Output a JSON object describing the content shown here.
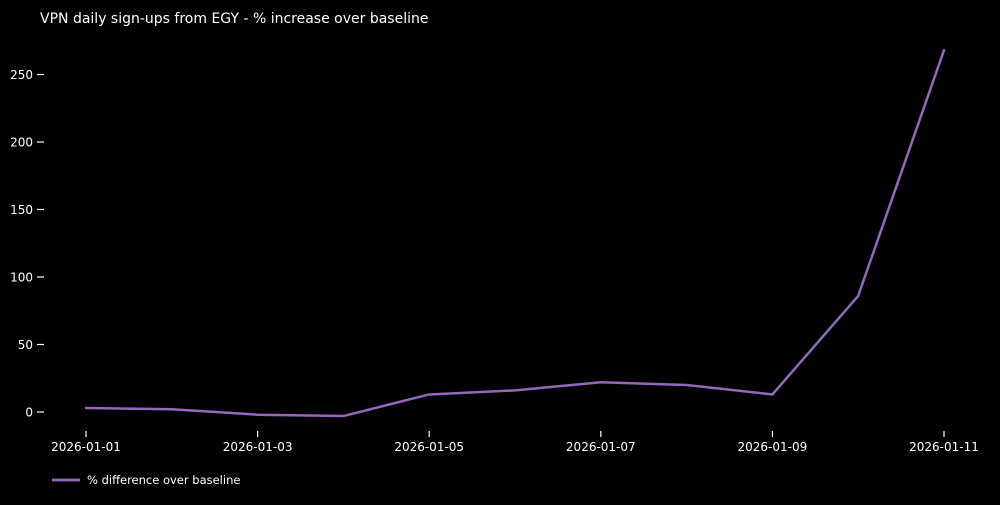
{
  "colors": {
    "background": "#000000",
    "text": "#ffffff",
    "line": "#9467bd"
  },
  "legend": {
    "label": "% difference over baseline"
  },
  "chart_data": {
    "type": "line",
    "title": "VPN daily sign-ups from EGY - % increase over baseline",
    "x": [
      "2026-01-01",
      "2026-01-02",
      "2026-01-03",
      "2026-01-04",
      "2026-01-05",
      "2026-01-06",
      "2026-01-07",
      "2026-01-08",
      "2026-01-09",
      "2026-01-10",
      "2026-01-11"
    ],
    "series": [
      {
        "name": "% difference over baseline",
        "values": [
          3,
          2,
          -2,
          -3,
          13,
          16,
          22,
          20,
          13,
          86,
          268
        ]
      }
    ],
    "xticks": [
      "2026-01-01",
      "2026-01-03",
      "2026-01-05",
      "2026-01-07",
      "2026-01-09",
      "2026-01-11"
    ],
    "yticks": [
      0,
      50,
      100,
      150,
      200,
      250
    ],
    "ylim": [
      -17,
      281
    ],
    "grid": false,
    "legend_position": "lower-left-outside",
    "xlabel": "",
    "ylabel": ""
  }
}
